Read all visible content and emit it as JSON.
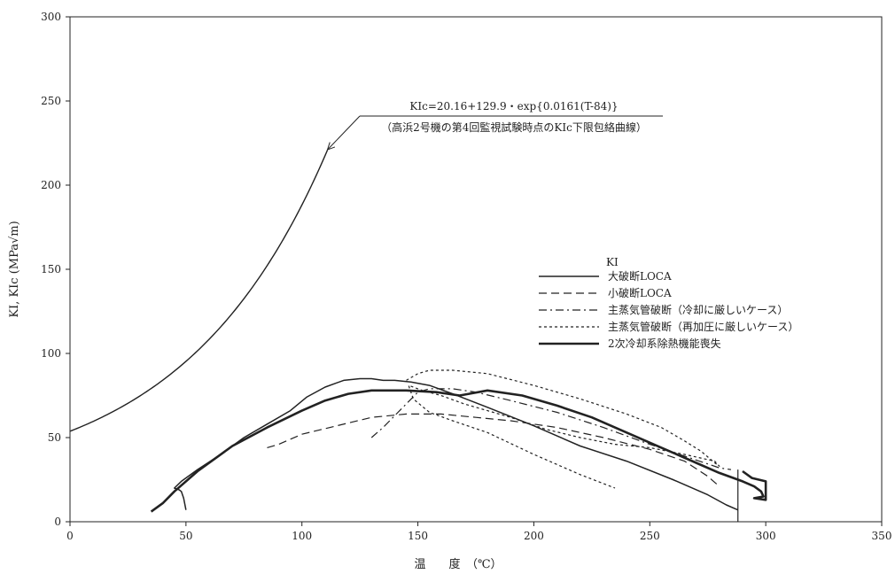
{
  "chart_data": {
    "type": "line",
    "xlabel": "温　　度　（℃）",
    "ylabel": "KI, KIc (MPa√m)",
    "xlim": [
      0,
      350
    ],
    "ylim": [
      0,
      300
    ],
    "x_ticks": [
      0,
      50,
      100,
      150,
      200,
      250,
      300,
      350
    ],
    "y_ticks": [
      0,
      50,
      100,
      150,
      200,
      250,
      300
    ],
    "grid": false,
    "legend_title": "KI",
    "legend_position": "right",
    "annotation": {
      "formula": "KIc=20.16+129.9・exp{0.0161(T-84)}",
      "note": "（高浜2号機の第4回監視試験時点のKIc下限包絡曲線）",
      "arrow_to": [
        111,
        221
      ]
    },
    "vertical_line_x": 288,
    "series": [
      {
        "name": "大破断LOCA",
        "style": "solid",
        "width": 1.5,
        "points": [
          [
            50,
            7
          ],
          [
            49,
            14
          ],
          [
            48,
            18
          ],
          [
            47,
            19
          ],
          [
            45,
            20
          ],
          [
            48,
            24
          ],
          [
            55,
            31
          ],
          [
            65,
            40
          ],
          [
            75,
            50
          ],
          [
            85,
            58
          ],
          [
            95,
            66
          ],
          [
            102,
            74
          ],
          [
            110,
            80
          ],
          [
            118,
            84
          ],
          [
            125,
            85
          ],
          [
            130,
            85
          ],
          [
            135,
            84
          ],
          [
            140,
            84
          ],
          [
            147,
            83
          ],
          [
            155,
            81
          ],
          [
            165,
            76
          ],
          [
            180,
            68
          ],
          [
            200,
            57
          ],
          [
            220,
            45
          ],
          [
            240,
            36
          ],
          [
            260,
            25
          ],
          [
            275,
            16
          ],
          [
            283,
            10
          ],
          [
            288,
            7
          ]
        ]
      },
      {
        "name": "小破断LOCA",
        "style": "dashed",
        "width": 1.2,
        "points": [
          [
            85,
            44
          ],
          [
            90,
            46
          ],
          [
            100,
            52
          ],
          [
            115,
            57
          ],
          [
            130,
            62
          ],
          [
            145,
            64
          ],
          [
            160,
            64
          ],
          [
            175,
            62
          ],
          [
            190,
            60
          ],
          [
            210,
            56
          ],
          [
            230,
            50
          ],
          [
            250,
            43
          ],
          [
            265,
            36
          ],
          [
            275,
            27
          ],
          [
            280,
            21
          ]
        ]
      },
      {
        "name": "主蒸気管破断（冷却に厳しいケース）",
        "style": "dashdot",
        "width": 1.2,
        "points": [
          [
            130,
            50
          ],
          [
            135,
            56
          ],
          [
            140,
            63
          ],
          [
            145,
            70
          ],
          [
            150,
            77
          ],
          [
            155,
            79
          ],
          [
            165,
            79
          ],
          [
            175,
            77
          ],
          [
            190,
            72
          ],
          [
            210,
            65
          ],
          [
            230,
            56
          ],
          [
            250,
            46
          ],
          [
            265,
            39
          ],
          [
            280,
            32
          ],
          [
            285,
            31
          ]
        ]
      },
      {
        "name": "主蒸気管破断（再加圧に厳しいケース）",
        "style": "dotted",
        "width": 1.2,
        "points": [
          [
            145,
            84
          ],
          [
            150,
            88
          ],
          [
            155,
            90
          ],
          [
            165,
            90
          ],
          [
            180,
            88
          ],
          [
            200,
            81
          ],
          [
            220,
            73
          ],
          [
            240,
            64
          ],
          [
            255,
            56
          ],
          [
            265,
            48
          ],
          [
            272,
            42
          ],
          [
            278,
            35
          ],
          [
            280,
            33
          ],
          [
            278,
            36
          ],
          [
            265,
            40
          ],
          [
            250,
            44
          ],
          [
            235,
            46
          ],
          [
            220,
            50
          ],
          [
            205,
            55
          ],
          [
            190,
            62
          ],
          [
            180,
            66
          ],
          [
            170,
            70
          ],
          [
            160,
            75
          ],
          [
            152,
            78
          ],
          [
            148,
            80
          ],
          [
            146,
            81
          ],
          [
            148,
            73
          ],
          [
            155,
            65
          ],
          [
            165,
            60
          ],
          [
            180,
            53
          ],
          [
            200,
            40
          ],
          [
            220,
            28
          ],
          [
            235,
            20
          ]
        ]
      },
      {
        "name": "2次冷却系除熱機能喪失",
        "style": "solid",
        "width": 2.6,
        "points": [
          [
            35,
            6
          ],
          [
            40,
            11
          ],
          [
            45,
            18
          ],
          [
            55,
            30
          ],
          [
            70,
            45
          ],
          [
            85,
            56
          ],
          [
            100,
            66
          ],
          [
            110,
            72
          ],
          [
            120,
            76
          ],
          [
            130,
            78
          ],
          [
            145,
            78
          ],
          [
            158,
            77
          ],
          [
            168,
            75
          ],
          [
            172,
            76
          ],
          [
            180,
            78
          ],
          [
            195,
            75
          ],
          [
            210,
            69
          ],
          [
            225,
            62
          ],
          [
            240,
            53
          ],
          [
            255,
            44
          ],
          [
            270,
            35
          ],
          [
            280,
            29
          ],
          [
            290,
            24
          ],
          [
            295,
            21
          ],
          [
            298,
            18
          ],
          [
            299,
            15
          ],
          [
            295,
            14
          ],
          [
            300,
            13
          ],
          [
            300,
            24
          ],
          [
            294,
            26
          ],
          [
            290,
            30
          ]
        ]
      }
    ],
    "kic_curve": {
      "name": "KIc下限包絡曲線",
      "x_range": [
        0,
        111
      ]
    }
  }
}
